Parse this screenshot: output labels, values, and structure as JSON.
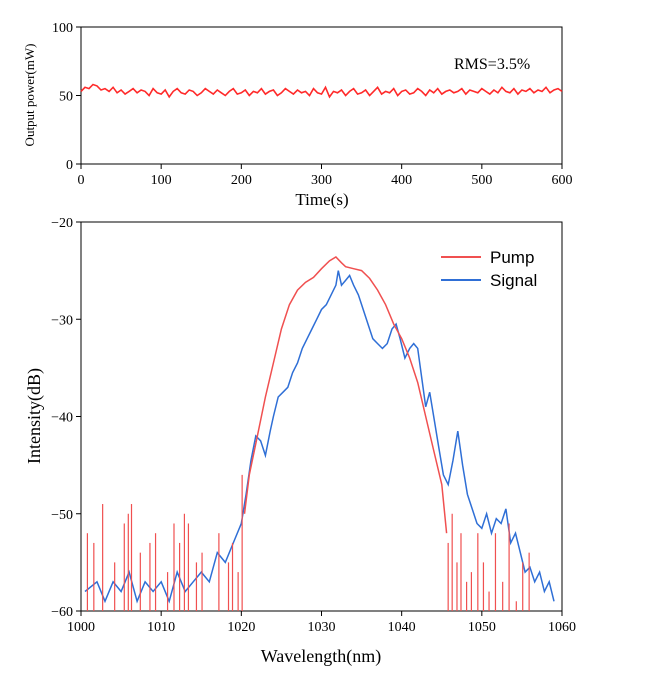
{
  "colors": {
    "power_trace": "#ff2a2a",
    "pump": "#f05050",
    "signal": "#2f6fd6",
    "axis": "#000000"
  },
  "chart_data": [
    {
      "type": "line",
      "xlabel": "Time(s)",
      "ylabel": "Output power(mW)",
      "xlim": [
        0,
        600
      ],
      "ylim": [
        0,
        100
      ],
      "xticks": [
        0,
        100,
        200,
        300,
        400,
        500,
        600
      ],
      "yticks": [
        0,
        50,
        100
      ],
      "grid": false,
      "annotation": "RMS=3.5%",
      "series": [
        {
          "x": [
            0,
            5,
            10,
            15,
            20,
            25,
            30,
            35,
            40,
            45,
            50,
            55,
            60,
            65,
            70,
            75,
            80,
            85,
            90,
            95,
            100,
            105,
            110,
            115,
            120,
            125,
            130,
            135,
            140,
            145,
            150,
            155,
            160,
            165,
            170,
            175,
            180,
            185,
            190,
            195,
            200,
            205,
            210,
            215,
            220,
            225,
            230,
            235,
            240,
            245,
            250,
            255,
            260,
            265,
            270,
            275,
            280,
            285,
            290,
            295,
            300,
            305,
            310,
            315,
            320,
            325,
            330,
            335,
            340,
            345,
            350,
            355,
            360,
            365,
            370,
            375,
            380,
            385,
            390,
            395,
            400,
            405,
            410,
            415,
            420,
            425,
            430,
            435,
            440,
            445,
            450,
            455,
            460,
            465,
            470,
            475,
            480,
            485,
            490,
            495,
            500,
            505,
            510,
            515,
            520,
            525,
            530,
            535,
            540,
            545,
            550,
            555,
            560,
            565,
            570,
            575,
            580,
            585,
            590,
            595,
            600
          ],
          "values": [
            53,
            56,
            55,
            58,
            57,
            54,
            55,
            53,
            56,
            52,
            54,
            51,
            53,
            55,
            52,
            54,
            53,
            50,
            55,
            52,
            51,
            54,
            49,
            53,
            55,
            52,
            51,
            54,
            53,
            50,
            52,
            55,
            53,
            51,
            54,
            52,
            50,
            53,
            55,
            51,
            52,
            54,
            50,
            53,
            52,
            55,
            51,
            53,
            54,
            50,
            52,
            55,
            53,
            51,
            54,
            52,
            53,
            50,
            55,
            52,
            51,
            56,
            49,
            53,
            52,
            54,
            50,
            53,
            55,
            51,
            52,
            54,
            50,
            53,
            56,
            51,
            53,
            52,
            55,
            50,
            53,
            54,
            51,
            52,
            55,
            53,
            50,
            54,
            52,
            55,
            51,
            53,
            54,
            52,
            53,
            55,
            51,
            54,
            53,
            52,
            55,
            53,
            51,
            54,
            52,
            56,
            53,
            52,
            55,
            51,
            54,
            53,
            55,
            52,
            54,
            53,
            56,
            52,
            54,
            55,
            53
          ]
        }
      ]
    },
    {
      "type": "line",
      "xlabel": "Wavelength(nm)",
      "ylabel": "Intensity(dB)",
      "xlim": [
        1000,
        1060
      ],
      "ylim": [
        -60,
        -20
      ],
      "xticks": [
        1000,
        1010,
        1020,
        1030,
        1040,
        1050,
        1060
      ],
      "yticks": [
        -60,
        -50,
        -40,
        -30,
        -20
      ],
      "grid": false,
      "legend": "top-right",
      "series": [
        {
          "name": "Pump",
          "x": [
            1020.4,
            1021,
            1022,
            1023,
            1024,
            1025,
            1026,
            1027,
            1028,
            1029,
            1030,
            1031,
            1031.8,
            1032.5,
            1033,
            1034,
            1035,
            1036,
            1037,
            1038,
            1039,
            1040,
            1041,
            1042,
            1043,
            1044,
            1045,
            1045.6
          ],
          "values": [
            -50,
            -46,
            -42,
            -38,
            -34.5,
            -31,
            -28.5,
            -27,
            -26.2,
            -25.7,
            -24.8,
            -24,
            -23.6,
            -24.2,
            -24.6,
            -24.8,
            -25,
            -25.8,
            -27,
            -28.5,
            -30.5,
            -32,
            -34,
            -36.5,
            -40,
            -43.5,
            -47,
            -52
          ],
          "spikes_x": [
            1000.8,
            1001.6,
            1002.7,
            1004.2,
            1005.4,
            1005.9,
            1006.3,
            1007.4,
            1008.6,
            1009.3,
            1010.8,
            1011.6,
            1012.3,
            1012.9,
            1013.4,
            1014.4,
            1015.1,
            1017.2,
            1018.4,
            1018.9,
            1019.6,
            1020.1,
            1045.8,
            1046.3,
            1046.9,
            1047.4,
            1048.1,
            1048.7,
            1049.5,
            1050.2,
            1050.9,
            1051.7,
            1052.6,
            1053.4,
            1054.3,
            1055.1,
            1055.9
          ],
          "spikes_y": [
            -52,
            -53,
            -49,
            -55,
            -51,
            -50,
            -49,
            -54,
            -53,
            -52,
            -56,
            -51,
            -53,
            -50,
            -51,
            -55,
            -54,
            -52,
            -55,
            -53,
            -56,
            -46,
            -53,
            -50,
            -55,
            -52,
            -57,
            -56,
            -52,
            -55,
            -58,
            -52,
            -57,
            -51,
            -59,
            -55,
            -54
          ]
        },
        {
          "name": "Signal",
          "x": [
            1000.5,
            1002,
            1003,
            1004,
            1005,
            1006,
            1007,
            1008,
            1009,
            1010,
            1011,
            1012,
            1013,
            1014,
            1015,
            1016,
            1017,
            1018,
            1019,
            1020,
            1020.6,
            1021.2,
            1021.8,
            1022.4,
            1023,
            1023.6,
            1024,
            1024.6,
            1025.2,
            1025.8,
            1026.4,
            1027,
            1027.6,
            1028.2,
            1028.8,
            1029.4,
            1030,
            1030.6,
            1031.2,
            1031.8,
            1032.1,
            1032.5,
            1033,
            1033.5,
            1034,
            1034.6,
            1035.2,
            1035.8,
            1036.4,
            1037,
            1037.6,
            1038.2,
            1038.8,
            1039.3,
            1039.8,
            1040.4,
            1041,
            1041.5,
            1042,
            1042.5,
            1043,
            1043.5,
            1044,
            1044.6,
            1045.2,
            1045.8,
            1046.4,
            1047,
            1047.6,
            1048.2,
            1048.8,
            1049.4,
            1050,
            1050.6,
            1051.2,
            1051.8,
            1052.4,
            1053,
            1053.6,
            1054.2,
            1054.8,
            1055.4,
            1056,
            1056.6,
            1057.2,
            1057.8,
            1058.4,
            1059
          ],
          "values": [
            -58,
            -57,
            -59,
            -57,
            -58,
            -56,
            -59,
            -57,
            -58,
            -57,
            -59,
            -56,
            -58,
            -57,
            -56,
            -57,
            -54,
            -55,
            -53,
            -51,
            -48,
            -44.5,
            -42,
            -42.5,
            -44,
            -41.5,
            -40,
            -38,
            -37.5,
            -37,
            -35.5,
            -34.5,
            -33,
            -32,
            -31,
            -30,
            -29,
            -28.5,
            -27.5,
            -26.5,
            -25,
            -26.5,
            -26,
            -25.5,
            -26.5,
            -27.5,
            -29,
            -30.5,
            -32,
            -32.5,
            -33,
            -32.5,
            -31,
            -30.5,
            -32,
            -34,
            -33,
            -32.5,
            -33,
            -36,
            -39,
            -37.5,
            -40,
            -43,
            -46,
            -47,
            -44.5,
            -41.5,
            -45,
            -48,
            -49.5,
            -51,
            -51.5,
            -50,
            -52,
            -50.5,
            -51,
            -49.5,
            -53,
            -52,
            -54,
            -56,
            -55.5,
            -57,
            -56,
            -58,
            -57,
            -59
          ]
        }
      ]
    }
  ]
}
